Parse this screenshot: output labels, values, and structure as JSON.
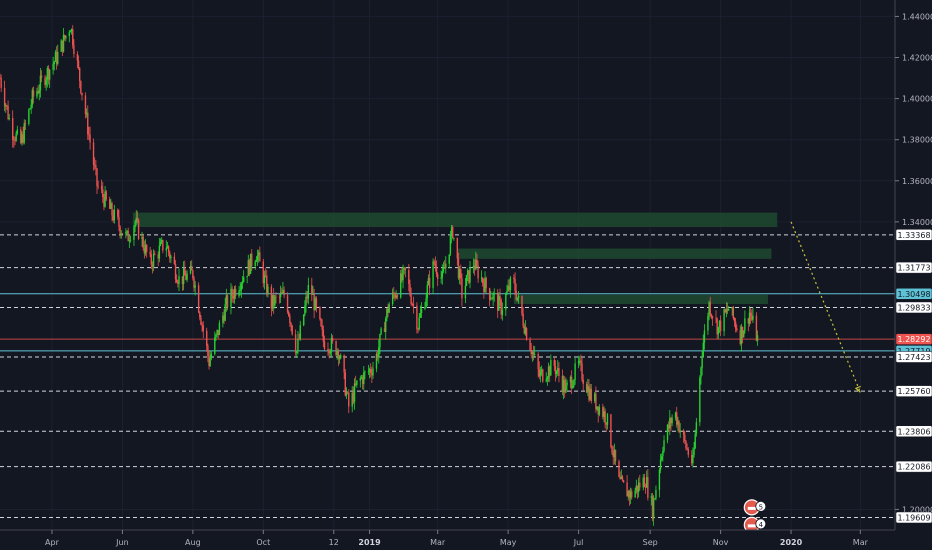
{
  "chart_data": {
    "type": "candlestick",
    "title": "",
    "xlabel": "",
    "ylabel": "",
    "ylim": [
      1.19,
      1.448
    ],
    "x_range": [
      "2018-02-15",
      "2020-03-31"
    ],
    "x_ticks": [
      {
        "label": "Apr",
        "date": "2018-04-01"
      },
      {
        "label": "Jun",
        "date": "2018-06-01"
      },
      {
        "label": "Aug",
        "date": "2018-08-01"
      },
      {
        "label": "Oct",
        "date": "2018-10-01"
      },
      {
        "label": "12",
        "date": "2018-12-01"
      },
      {
        "label": "2019",
        "date": "2019-01-01",
        "bold": true
      },
      {
        "label": "Mar",
        "date": "2019-03-01"
      },
      {
        "label": "May",
        "date": "2019-05-01"
      },
      {
        "label": "Jul",
        "date": "2019-07-01"
      },
      {
        "label": "Sep",
        "date": "2019-09-01"
      },
      {
        "label": "Nov",
        "date": "2019-11-01"
      },
      {
        "label": "2020",
        "date": "2020-01-01",
        "bold": true
      },
      {
        "label": "Mar",
        "date": "2020-03-01"
      }
    ],
    "y_ticks": [
      "1.44000",
      "1.42000",
      "1.40000",
      "1.38000",
      "1.36000",
      "1.34000",
      "1.20000"
    ],
    "levels": [
      {
        "value": 1.33368,
        "label": "1.33368",
        "style": "dashed"
      },
      {
        "value": 1.31773,
        "label": "1.31773",
        "style": "dashed"
      },
      {
        "value": 1.30498,
        "label": "1.30498",
        "style": "solid-cyan"
      },
      {
        "value": 1.29833,
        "label": "1.29833",
        "style": "dashed"
      },
      {
        "value": 1.28292,
        "label": "1.28292",
        "style": "current-price"
      },
      {
        "value": 1.27719,
        "label": "1.27719",
        "style": "solid-cyan"
      },
      {
        "value": 1.27423,
        "label": "1.27423",
        "style": "dashed"
      },
      {
        "value": 1.2576,
        "label": "1.25760",
        "style": "dashed"
      },
      {
        "value": 1.23806,
        "label": "1.23806",
        "style": "dashed"
      },
      {
        "value": 1.22086,
        "label": "1.22086",
        "style": "dashed"
      },
      {
        "value": 1.19609,
        "label": "1.19609",
        "style": "dashed"
      }
    ],
    "zones": [
      {
        "start": "2018-06-10",
        "end": "2019-12-20",
        "low": 1.3375,
        "high": 1.3445
      },
      {
        "start": "2019-03-18",
        "end": "2019-12-15",
        "low": 1.322,
        "high": 1.327
      },
      {
        "start": "2019-05-06",
        "end": "2019-12-12",
        "low": 1.3,
        "high": 1.3045
      }
    ],
    "projection": {
      "from": {
        "date": "2020-01-01",
        "price": 1.34
      },
      "to": {
        "date": "2020-03-01",
        "price": 1.257
      }
    },
    "close_path": [
      [
        "2018-02-15",
        1.41
      ],
      [
        "2018-02-25",
        1.385
      ],
      [
        "2018-03-05",
        1.378
      ],
      [
        "2018-03-15",
        1.4
      ],
      [
        "2018-03-25",
        1.41
      ],
      [
        "2018-04-05",
        1.42
      ],
      [
        "2018-04-17",
        1.436
      ],
      [
        "2018-04-28",
        1.4
      ],
      [
        "2018-05-10",
        1.358
      ],
      [
        "2018-05-22",
        1.345
      ],
      [
        "2018-06-05",
        1.332
      ],
      [
        "2018-06-12",
        1.34
      ],
      [
        "2018-06-25",
        1.32
      ],
      [
        "2018-07-08",
        1.33
      ],
      [
        "2018-07-20",
        1.312
      ],
      [
        "2018-08-01",
        1.315
      ],
      [
        "2018-08-15",
        1.272
      ],
      [
        "2018-08-30",
        1.3
      ],
      [
        "2018-09-15",
        1.315
      ],
      [
        "2018-09-25",
        1.325
      ],
      [
        "2018-10-08",
        1.3
      ],
      [
        "2018-10-20",
        1.305
      ],
      [
        "2018-10-30",
        1.277
      ],
      [
        "2018-11-10",
        1.31
      ],
      [
        "2018-11-22",
        1.282
      ],
      [
        "2018-12-05",
        1.278
      ],
      [
        "2018-12-14",
        1.25
      ],
      [
        "2018-12-22",
        1.262
      ],
      [
        "2019-01-05",
        1.27
      ],
      [
        "2019-01-18",
        1.3
      ],
      [
        "2019-02-01",
        1.315
      ],
      [
        "2019-02-12",
        1.29
      ],
      [
        "2019-02-26",
        1.32
      ],
      [
        "2019-03-05",
        1.312
      ],
      [
        "2019-03-14",
        1.336
      ],
      [
        "2019-03-22",
        1.305
      ],
      [
        "2019-04-01",
        1.32
      ],
      [
        "2019-04-12",
        1.308
      ],
      [
        "2019-04-25",
        1.298
      ],
      [
        "2019-05-05",
        1.312
      ],
      [
        "2019-05-15",
        1.29
      ],
      [
        "2019-05-28",
        1.265
      ],
      [
        "2019-06-10",
        1.27
      ],
      [
        "2019-06-20",
        1.258
      ],
      [
        "2019-07-01",
        1.27
      ],
      [
        "2019-07-12",
        1.255
      ],
      [
        "2019-07-25",
        1.245
      ],
      [
        "2019-08-05",
        1.213
      ],
      [
        "2019-08-15",
        1.207
      ],
      [
        "2019-08-28",
        1.215
      ],
      [
        "2019-09-03",
        1.2
      ],
      [
        "2019-09-12",
        1.232
      ],
      [
        "2019-09-22",
        1.248
      ],
      [
        "2019-10-01",
        1.232
      ],
      [
        "2019-10-08",
        1.222
      ],
      [
        "2019-10-16",
        1.278
      ],
      [
        "2019-10-22",
        1.3
      ],
      [
        "2019-10-30",
        1.288
      ],
      [
        "2019-11-08",
        1.298
      ],
      [
        "2019-11-18",
        1.285
      ],
      [
        "2019-11-26",
        1.296
      ],
      [
        "2019-12-03",
        1.283
      ]
    ]
  },
  "markers": [
    {
      "date": "2019-11-28",
      "price": 1.201,
      "number": "5",
      "icon": "flag-icon"
    },
    {
      "date": "2019-11-28",
      "price": 1.1925,
      "number": "4",
      "icon": "flag-icon"
    }
  ]
}
